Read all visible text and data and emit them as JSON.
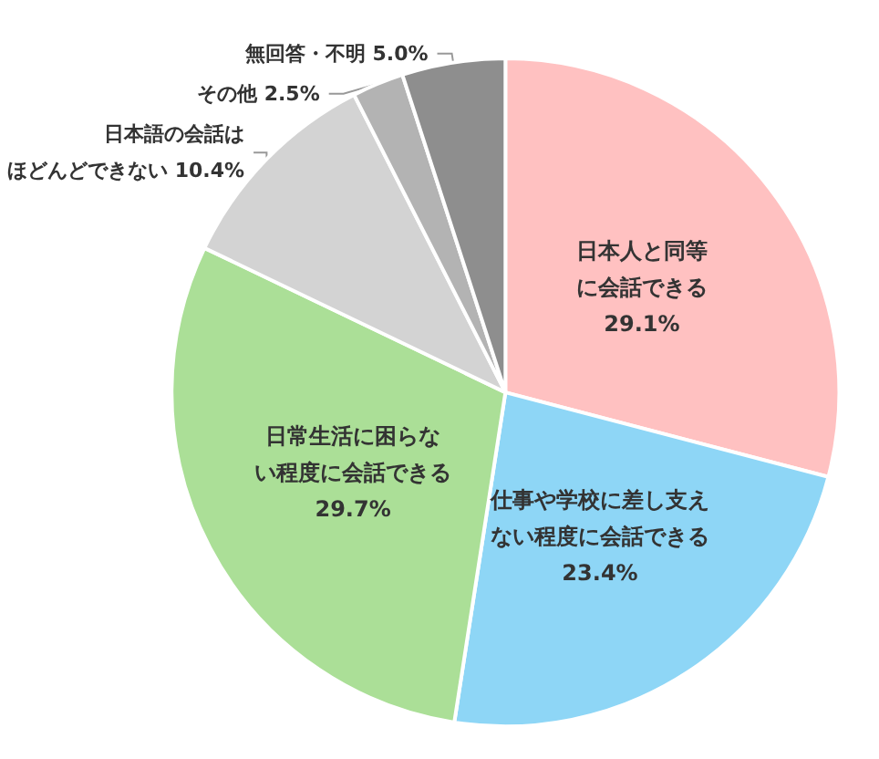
{
  "chart_data": {
    "type": "pie",
    "categories": [
      "日本人と同等に会話できる",
      "仕事や学校に差し支えない程度に会話できる",
      "日常生活に困らない程度に会話できる",
      "日本語の会話はほどんどできない",
      "その他",
      "無回答・不明"
    ],
    "values": [
      29.1,
      23.4,
      29.7,
      10.4,
      2.5,
      5.0
    ],
    "colors": [
      "#ffc1c1",
      "#8ed6f6",
      "#abdf97",
      "#d3d3d3",
      "#b3b3b3",
      "#8e8e8e"
    ],
    "value_labels": [
      "29.1%",
      "23.4%",
      "29.7%",
      "10.4%",
      "2.5%",
      "5.0%"
    ]
  }
}
